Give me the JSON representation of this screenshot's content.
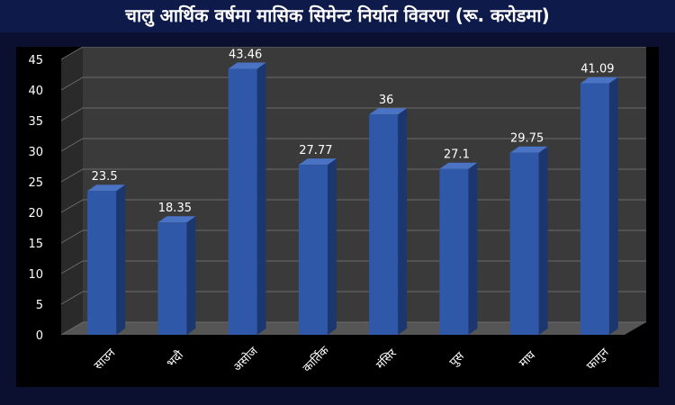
{
  "title": "चालु आर्थिक वर्षमा मासिक सिमेन्ट निर्यात विवरण (रू. करोडमा)",
  "chart_data": {
    "type": "bar",
    "title": "चालु आर्थिक वर्षमा मासिक सिमेन्ट निर्यात विवरण (रू. करोडमा)",
    "categories": [
      "साउन",
      "भदौ",
      "असोज",
      "कार्तिक",
      "मंसिर",
      "पुस",
      "माघ",
      "फागुन"
    ],
    "values": [
      23.5,
      18.35,
      43.46,
      27.77,
      36,
      27.1,
      29.75,
      41.09
    ],
    "data_labels": [
      "23.5",
      "18.35",
      "43.46",
      "27.77",
      "36",
      "27.1",
      "29.75",
      "41.09"
    ],
    "yticks": [
      "0",
      "5",
      "10",
      "15",
      "20",
      "25",
      "30",
      "35",
      "40",
      "45"
    ],
    "ylim": [
      0,
      45
    ],
    "xlabel": "",
    "ylabel": "",
    "grid": true,
    "legend": "none",
    "colors": {
      "bar_front": "#2f58a8",
      "bar_side": "#1c376f",
      "bar_top": "#4a73c4",
      "wall": "#3a3a3a",
      "floor": "#555555",
      "grid": "#6a6a6a",
      "text": "#ffffff"
    }
  }
}
